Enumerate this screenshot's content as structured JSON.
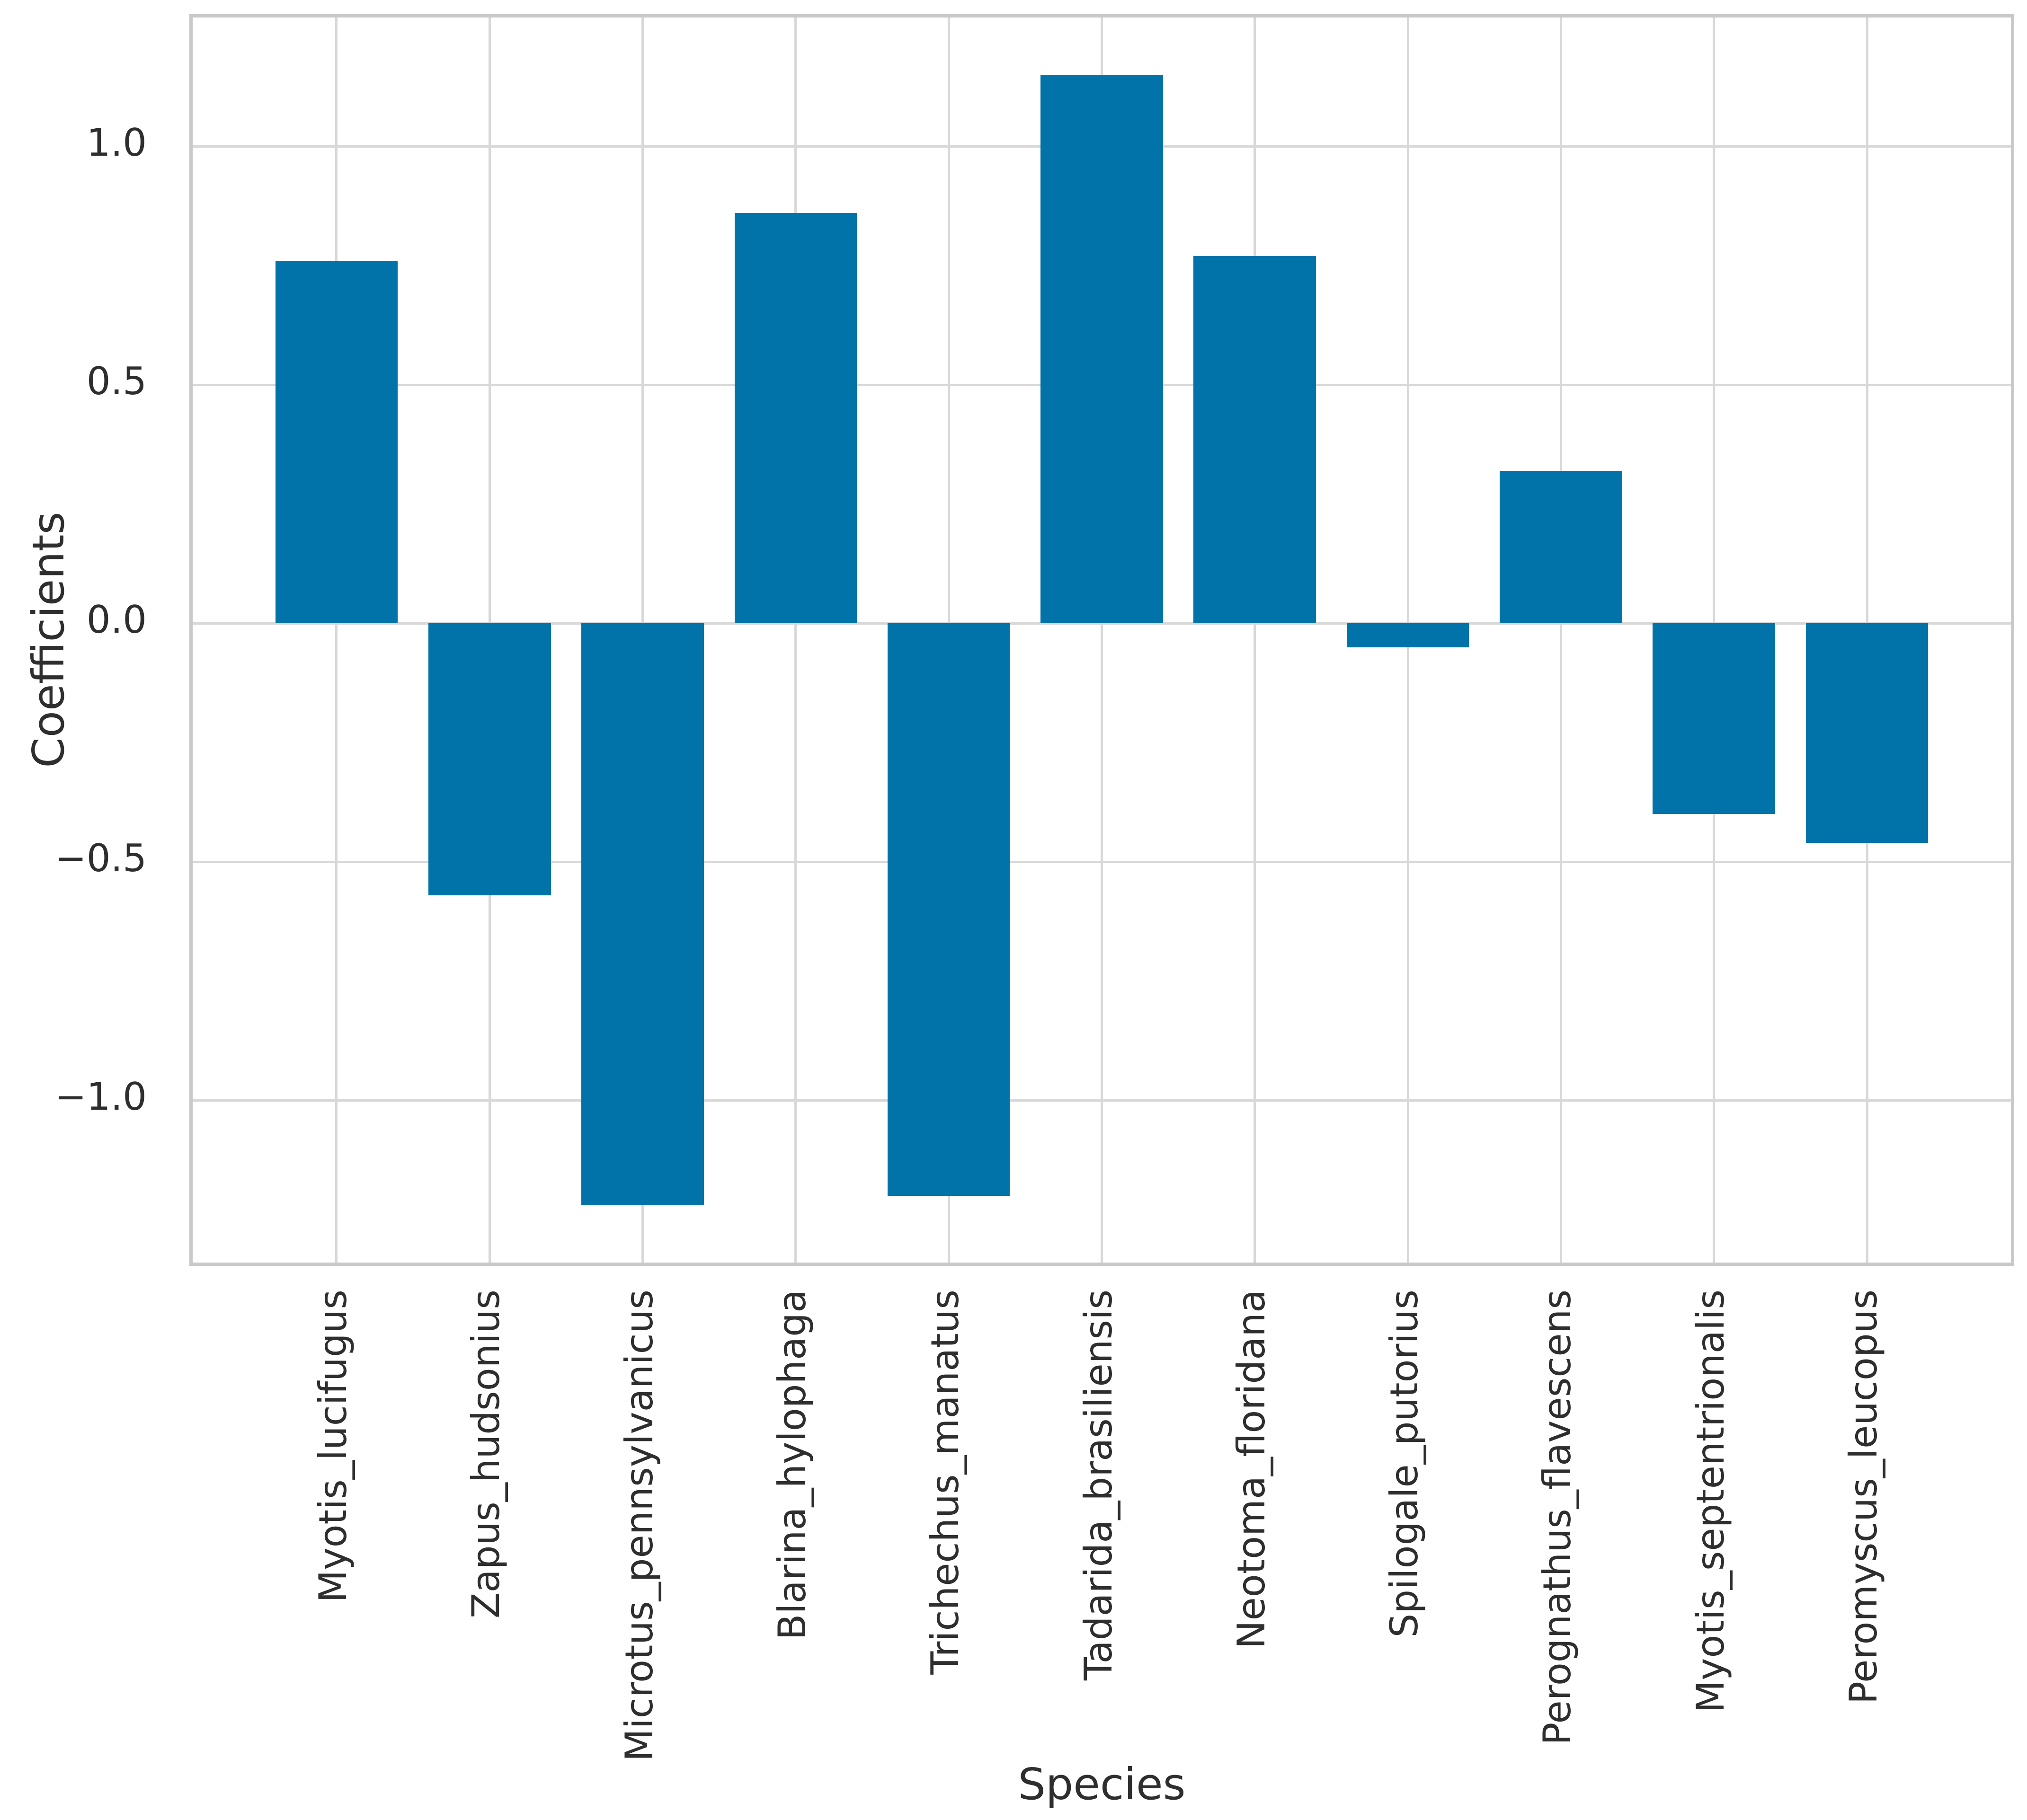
{
  "figure": {
    "background": "#ffffff",
    "text_color": "#2e2e2e",
    "grid_color": "#d8d8d8",
    "spine_color": "#c9c9c9"
  },
  "chart_data": {
    "type": "bar",
    "title": "",
    "xlabel": "Species",
    "ylabel": "Coefficients",
    "categories": [
      "Myotis_lucifugus",
      "Zapus_hudsonius",
      "Microtus_pennsylvanicus",
      "Blarina_hylophaga",
      "Trichechus_manatus",
      "Tadarida_brasiliensis",
      "Neotoma_floridana",
      "Spilogale_putorius",
      "Perognathus_flavescens",
      "Myotis_septentrionalis",
      "Peromyscus_leucopus"
    ],
    "values": [
      0.76,
      -0.57,
      -1.22,
      0.86,
      -1.2,
      1.15,
      0.77,
      -0.05,
      0.32,
      -0.4,
      -0.46
    ],
    "bar_color": "#0173a9",
    "bar_width": 0.8,
    "ylim": [
      -1.34,
      1.27
    ],
    "xlim": [
      -0.94,
      10.94
    ],
    "yticks": [
      1.0,
      0.5,
      0.0,
      -0.5,
      -1.0
    ],
    "ytick_labels": [
      "1.0",
      "0.5",
      "0.0",
      "−0.5",
      "−1.0"
    ],
    "grid": true,
    "grid_axes": "both",
    "legend": false
  }
}
